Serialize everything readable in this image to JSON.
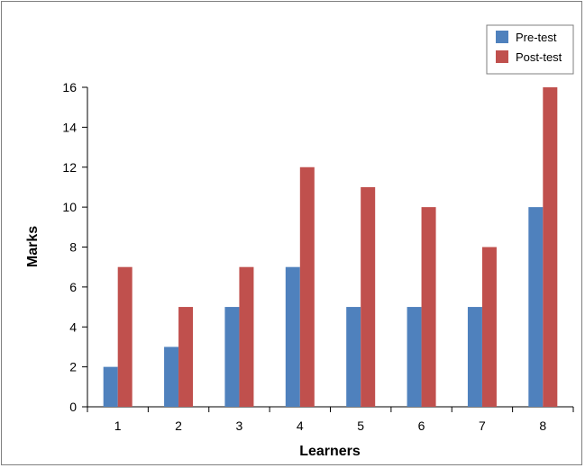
{
  "chart_data": {
    "type": "bar",
    "categories": [
      "1",
      "2",
      "3",
      "4",
      "5",
      "6",
      "7",
      "8"
    ],
    "series": [
      {
        "name": "Pre-test",
        "color": "#4f81bd",
        "values": [
          2,
          3,
          5,
          7,
          5,
          5,
          5,
          10
        ]
      },
      {
        "name": "Post-test",
        "color": "#c0504d",
        "values": [
          7,
          5,
          7,
          12,
          11,
          10,
          8,
          16
        ]
      }
    ],
    "title": "",
    "xlabel": "Learners",
    "ylabel": "Marks",
    "ylim": [
      0,
      16
    ],
    "yticks": [
      0,
      2,
      4,
      6,
      8,
      10,
      12,
      14,
      16
    ],
    "grid": false,
    "legend_position": "top-right"
  }
}
